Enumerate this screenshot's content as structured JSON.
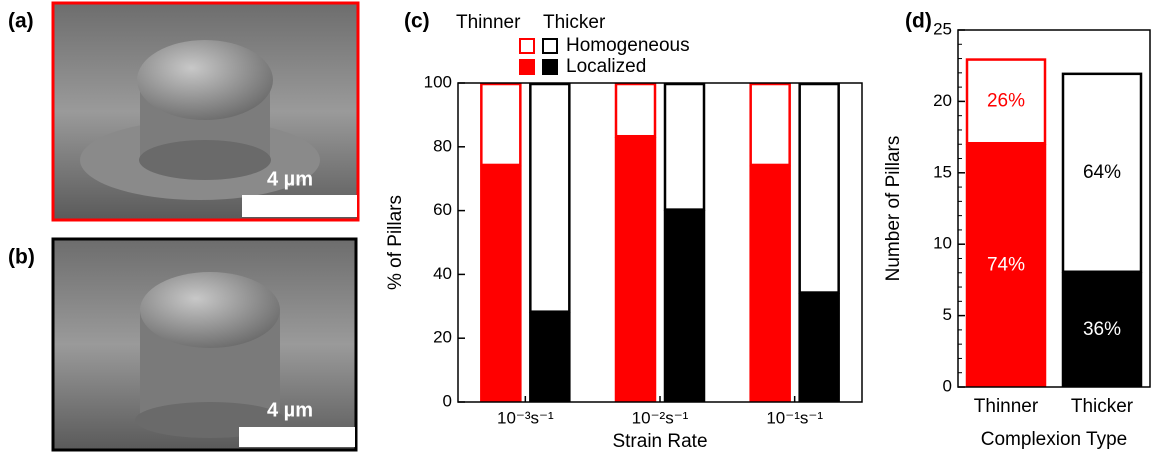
{
  "panels": {
    "a": {
      "label": "(a)",
      "scale_bar": "4 µm"
    },
    "b": {
      "label": "(b)",
      "scale_bar": "4 µm"
    }
  },
  "chart_data": [
    {
      "type": "stacked-group-bar",
      "label": "(c)",
      "x_label": "Strain Rate",
      "y_label": "% of Pillars",
      "categories": [
        "10⁻³s⁻¹",
        "10⁻²s⁻¹",
        "10⁻¹s⁻¹"
      ],
      "ylim": [
        0,
        100
      ],
      "yticks": [
        0,
        20,
        40,
        60,
        80,
        100
      ],
      "legend_columns": [
        "Thinner",
        "Thicker"
      ],
      "stack_names": [
        "Localized",
        "Homogeneous"
      ],
      "groups": [
        {
          "color": "#ff0000",
          "series": [
            {
              "values": [
                74,
                83,
                74
              ]
            },
            {
              "values": [
                26,
                17,
                26
              ]
            }
          ]
        },
        {
          "color": "#000000",
          "series": [
            {
              "values": [
                28,
                60,
                34
              ]
            },
            {
              "values": [
                72,
                40,
                66
              ]
            }
          ]
        }
      ]
    },
    {
      "type": "stacked-bar",
      "label": "(d)",
      "x_label": "Complexion Type",
      "y_label": "Number of Pillars",
      "categories": [
        "Thinner",
        "Thicker"
      ],
      "colors": [
        "#ff0000",
        "#000000"
      ],
      "ylim": [
        0,
        25
      ],
      "yticks": [
        0,
        5,
        10,
        15,
        20,
        25
      ],
      "series": [
        {
          "values": [
            17,
            8
          ],
          "percent_labels": [
            "74%",
            "36%"
          ]
        },
        {
          "values": [
            6,
            14
          ],
          "percent_labels": [
            "26%",
            "64%"
          ]
        }
      ]
    }
  ]
}
